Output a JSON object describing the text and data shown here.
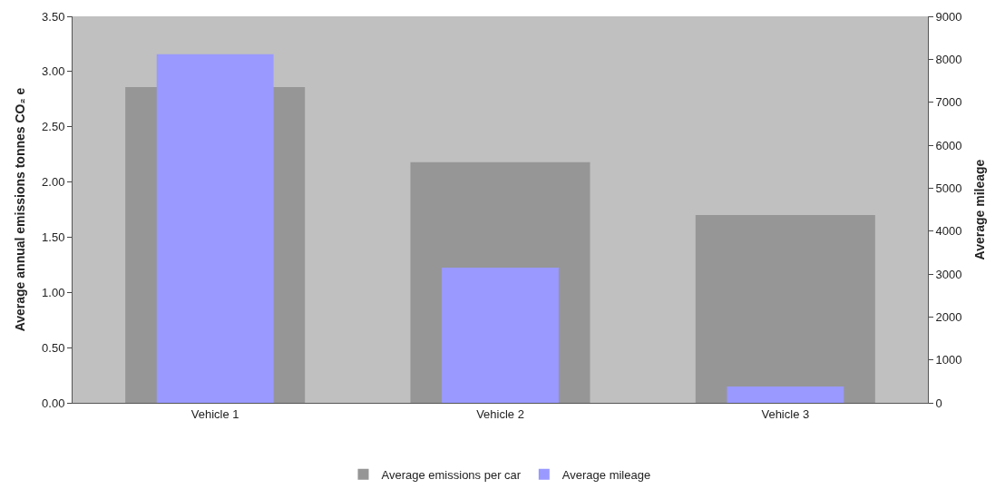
{
  "chart_data": {
    "type": "bar",
    "categories": [
      "Vehicle 1",
      "Vehicle 2",
      "Vehicle 3"
    ],
    "ylabel": "Average annual emissions tonnes CO₂ e",
    "y2label": "Average mileage",
    "series": [
      {
        "name": "Average emissions per car",
        "color": "#969696",
        "values": [
          2.86,
          2.18,
          1.7
        ]
      },
      {
        "name": "Average mileage",
        "color": "#9999ff",
        "values": [
          8120,
          3150,
          380
        ],
        "axis": "y2"
      }
    ],
    "ylim": [
      0,
      3.5
    ],
    "yticks": [
      {
        "value": 0,
        "label": "0.00"
      },
      {
        "value": 0.5,
        "label": "0.50"
      },
      {
        "value": 1,
        "label": "1.00"
      },
      {
        "value": 1.5,
        "label": "1.50"
      },
      {
        "value": 2,
        "label": "2.00"
      },
      {
        "value": 2.5,
        "label": "2.50"
      },
      {
        "value": 3,
        "label": "3.00"
      },
      {
        "value": 3.5,
        "label": "3.50"
      }
    ],
    "y2lim": [
      0,
      9000
    ],
    "y2ticks": [
      0,
      1000,
      2000,
      3000,
      4000,
      5000,
      6000,
      7000,
      8000,
      9000
    ],
    "grid": false,
    "legend": "bottom"
  }
}
